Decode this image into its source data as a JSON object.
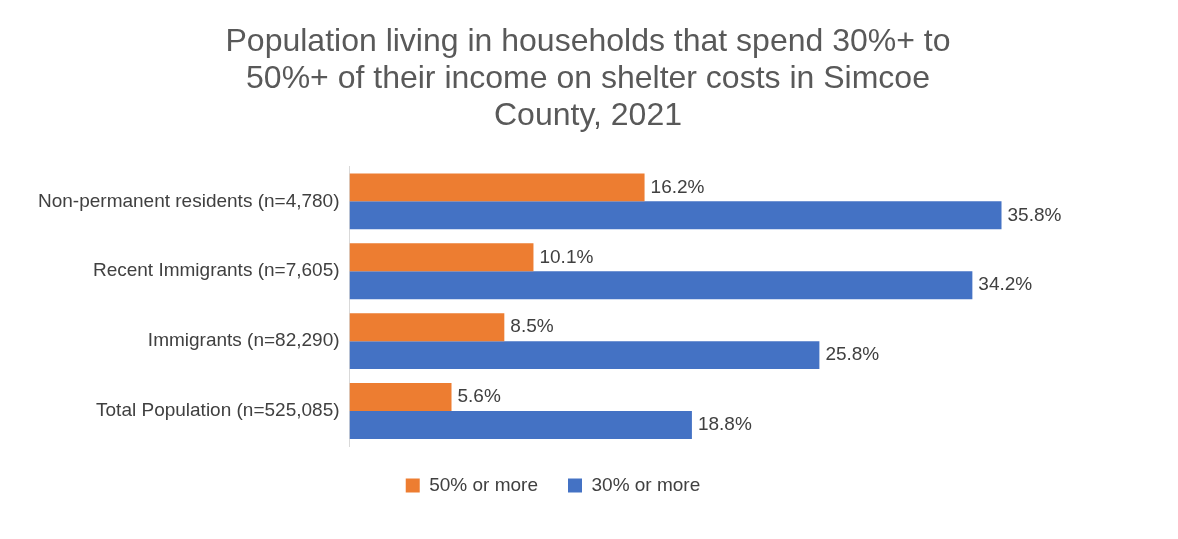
{
  "chart_data": {
    "type": "bar",
    "orientation": "horizontal",
    "title": "Population living in households that spend 30%+ to 50%+ of their income on shelter costs in Simcoe County, 2021",
    "categories": [
      "Non-permanent residents (n=4,780)",
      "Recent Immigrants (n=7,605)",
      "Immigrants (n=82,290)",
      "Total Population (n=525,085)"
    ],
    "series": [
      {
        "name": "50% or more",
        "color": "#ed7d31",
        "values": [
          16.2,
          10.1,
          8.5,
          5.6
        ],
        "value_labels": [
          "16.2%",
          "10.1%",
          "8.5%",
          "5.6%"
        ]
      },
      {
        "name": "30% or more",
        "color": "#4472c4",
        "values": [
          35.8,
          34.2,
          25.8,
          18.8
        ],
        "value_labels": [
          "35.8%",
          "34.2%",
          "25.8%",
          "18.8%"
        ]
      }
    ],
    "legend": "bottom",
    "grid": false,
    "tick_labels": "y"
  }
}
